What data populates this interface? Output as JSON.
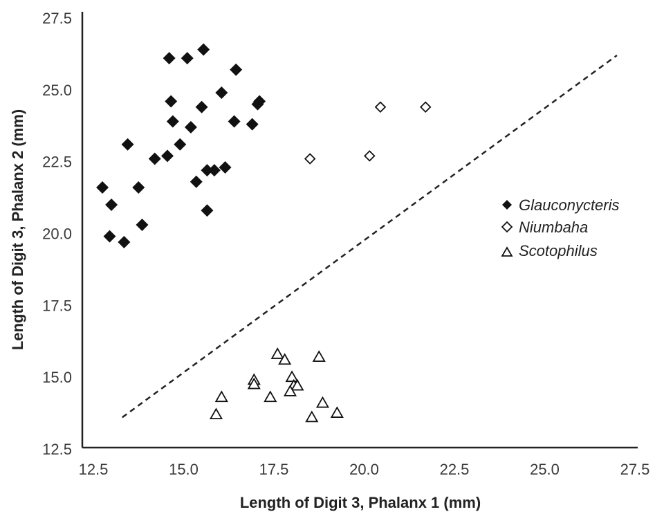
{
  "chart_data": {
    "type": "scatter",
    "xlabel": "Length of Digit 3, Phalanx 1 (mm)",
    "ylabel": "Length of Digit 3, Phalanx 2 (mm)",
    "xlim": [
      12.5,
      27.5
    ],
    "ylim": [
      12.5,
      27.5
    ],
    "xticks": [
      "12.5",
      "15.0",
      "17.5",
      "20.0",
      "22.5",
      "25.0",
      "27.5"
    ],
    "yticks": [
      "12.5",
      "15.0",
      "17.5",
      "20.0",
      "22.5",
      "25.0",
      "27.5"
    ],
    "legend_position": "right",
    "series": [
      {
        "name": "Glauconycteris",
        "marker": "filled-diamond",
        "points": [
          [
            14.6,
            26.1
          ],
          [
            15.1,
            26.1
          ],
          [
            15.55,
            26.4
          ],
          [
            16.45,
            25.7
          ],
          [
            14.65,
            24.6
          ],
          [
            16.05,
            24.9
          ],
          [
            15.5,
            24.4
          ],
          [
            17.05,
            24.5
          ],
          [
            17.1,
            24.6
          ],
          [
            14.7,
            23.9
          ],
          [
            15.2,
            23.7
          ],
          [
            16.4,
            23.9
          ],
          [
            16.9,
            23.8
          ],
          [
            13.45,
            23.1
          ],
          [
            14.9,
            23.1
          ],
          [
            14.2,
            22.6
          ],
          [
            14.55,
            22.7
          ],
          [
            15.65,
            22.2
          ],
          [
            15.85,
            22.2
          ],
          [
            16.15,
            22.3
          ],
          [
            15.35,
            21.8
          ],
          [
            12.75,
            21.6
          ],
          [
            13.75,
            21.6
          ],
          [
            13.0,
            21.0
          ],
          [
            15.65,
            20.8
          ],
          [
            13.85,
            20.3
          ],
          [
            12.95,
            19.9
          ],
          [
            13.35,
            19.7
          ]
        ]
      },
      {
        "name": "Niumbaha",
        "marker": "open-diamond",
        "points": [
          [
            20.45,
            24.4
          ],
          [
            21.7,
            24.4
          ],
          [
            18.5,
            22.6
          ],
          [
            20.15,
            22.7
          ]
        ]
      },
      {
        "name": "Scotophilus",
        "marker": "open-triangle",
        "points": [
          [
            17.6,
            15.8
          ],
          [
            17.8,
            15.6
          ],
          [
            18.75,
            15.7
          ],
          [
            18.0,
            15.0
          ],
          [
            16.95,
            14.9
          ],
          [
            16.95,
            14.75
          ],
          [
            18.05,
            14.7
          ],
          [
            18.15,
            14.7
          ],
          [
            17.95,
            14.5
          ],
          [
            16.05,
            14.3
          ],
          [
            17.4,
            14.3
          ],
          [
            18.85,
            14.1
          ],
          [
            15.9,
            13.7
          ],
          [
            18.55,
            13.6
          ],
          [
            19.25,
            13.75
          ]
        ]
      }
    ],
    "reference_line": {
      "style": "dashed",
      "from": [
        13.3,
        13.6
      ],
      "to": [
        27.0,
        26.2
      ]
    }
  }
}
